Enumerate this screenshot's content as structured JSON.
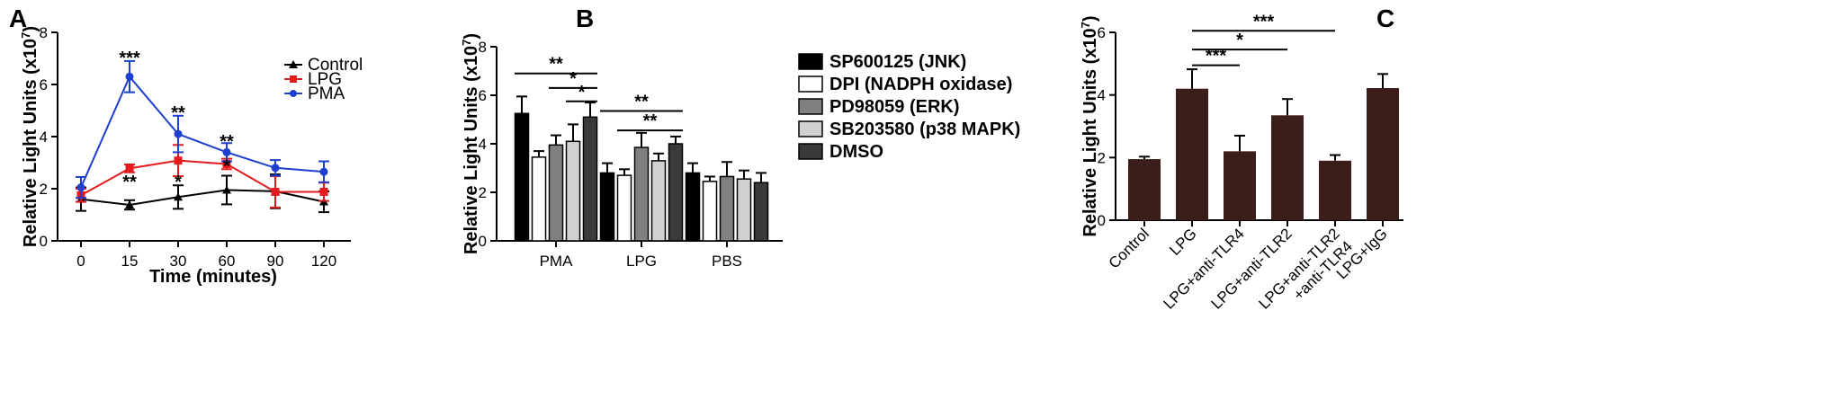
{
  "chart_data": [
    {
      "panel": "A",
      "type": "line",
      "xlabel": "Time (minutes)",
      "ylabel": "Relative Light Units (x10",
      "ylabel_sup": "7",
      "ylabel_end": ")",
      "ylim": [
        0,
        8
      ],
      "yticks": [
        "0",
        "2",
        "4",
        "6",
        "8"
      ],
      "x": [
        "0",
        "15",
        "30",
        "60",
        "90",
        "120"
      ],
      "legend_position": "top-right",
      "series": [
        {
          "name": "Control",
          "color": "#000000",
          "marker": "triangle",
          "values": [
            1.6,
            1.38,
            1.68,
            1.95,
            1.9,
            1.5
          ],
          "errors": [
            0.45,
            0.18,
            0.45,
            0.55,
            0.65,
            0.4
          ]
        },
        {
          "name": "LPG",
          "color": "#e41a1c",
          "marker": "square",
          "values": [
            1.75,
            2.78,
            3.08,
            2.95,
            1.88,
            1.88
          ],
          "errors": [
            0.25,
            0.15,
            0.6,
            0.2,
            0.6,
            0.35
          ]
        },
        {
          "name": "PMA",
          "color": "#1f3fd0",
          "marker": "circle",
          "values": [
            2.05,
            6.3,
            4.1,
            3.4,
            2.8,
            2.65
          ],
          "errors": [
            0.4,
            0.6,
            0.7,
            0.35,
            0.3,
            0.4
          ]
        }
      ],
      "annotations": [
        {
          "x": "15",
          "text": "***",
          "y": 7.0
        },
        {
          "x": "15",
          "text": "**",
          "y": 2.25
        },
        {
          "x": "30",
          "text": "**",
          "y": 4.9
        },
        {
          "x": "30",
          "text": "*",
          "y": 2.25
        },
        {
          "x": "60",
          "text": "**",
          "y": 3.8
        },
        {
          "x": "60",
          "text": "*",
          "y": 2.85
        }
      ]
    },
    {
      "panel": "B",
      "type": "bar",
      "ylabel": "Relative Light Units (x10",
      "ylabel_sup": "7",
      "ylabel_end": ")",
      "ylim": [
        0,
        8
      ],
      "yticks": [
        "0",
        "2",
        "4",
        "6",
        "8"
      ],
      "categories": [
        "PMA",
        "LPG",
        "PBS"
      ],
      "legend_position": "right",
      "series": [
        {
          "name": "SP600125 (JNK)",
          "color": "#000000",
          "values": [
            5.25,
            2.8,
            2.8
          ],
          "errors": [
            0.7,
            0.4,
            0.4
          ]
        },
        {
          "name": "DPI (NADPH oxidase)",
          "color": "#ffffff",
          "values": [
            3.45,
            2.7,
            2.45
          ],
          "errors": [
            0.25,
            0.25,
            0.2
          ]
        },
        {
          "name": "PD98059 (ERK)",
          "color": "#808080",
          "values": [
            3.95,
            3.85,
            2.65
          ],
          "errors": [
            0.4,
            0.6,
            0.6
          ]
        },
        {
          "name": "SB203580 (p38 MAPK)",
          "color": "#d0d0d0",
          "values": [
            4.1,
            3.3,
            2.55
          ],
          "errors": [
            0.7,
            0.3,
            0.35
          ]
        },
        {
          "name": "DMSO",
          "color": "#3a3a3a",
          "values": [
            5.1,
            4.0,
            2.4
          ],
          "errors": [
            0.6,
            0.3,
            0.4
          ]
        }
      ],
      "significance": [
        {
          "category": "PMA",
          "from": 0,
          "to": 4,
          "text": "**",
          "y": 6.9
        },
        {
          "category": "PMA",
          "from": 2,
          "to": 4,
          "text": "*",
          "y": 6.3
        },
        {
          "category": "PMA",
          "from": 3,
          "to": 4,
          "text": "*",
          "y": 5.75
        },
        {
          "category": "LPG",
          "from": 0,
          "to": 4,
          "text": "**",
          "y": 5.35
        },
        {
          "category": "LPG",
          "from": 1,
          "to": 4,
          "text": "**",
          "y": 4.55
        }
      ]
    },
    {
      "panel": "C",
      "type": "bar",
      "ylabel": "Relative Light Units (x10",
      "ylabel_sup": "7",
      "ylabel_end": ")",
      "ylim": [
        0,
        6
      ],
      "yticks": [
        "0",
        "2",
        "4",
        "6"
      ],
      "categories": [
        "Control",
        "LPG",
        "LPG+anti-TLR4",
        "LPG+anti-TLR2",
        "LPG+anti-TLR2\n+anti-TLR4",
        "LPG+IgG"
      ],
      "color": "#3b1e1a",
      "values": [
        1.95,
        4.2,
        2.2,
        3.35,
        1.9,
        4.22
      ],
      "errors": [
        0.08,
        0.62,
        0.5,
        0.52,
        0.18,
        0.45
      ],
      "significance": [
        {
          "from": 1,
          "to": 4,
          "text": "***",
          "y": 6.05
        },
        {
          "from": 1,
          "to": 3,
          "text": "*",
          "y": 5.45
        },
        {
          "from": 1,
          "to": 2,
          "text": "***",
          "y": 4.95
        }
      ]
    }
  ],
  "panel_labels": [
    "A",
    "B",
    "C"
  ]
}
